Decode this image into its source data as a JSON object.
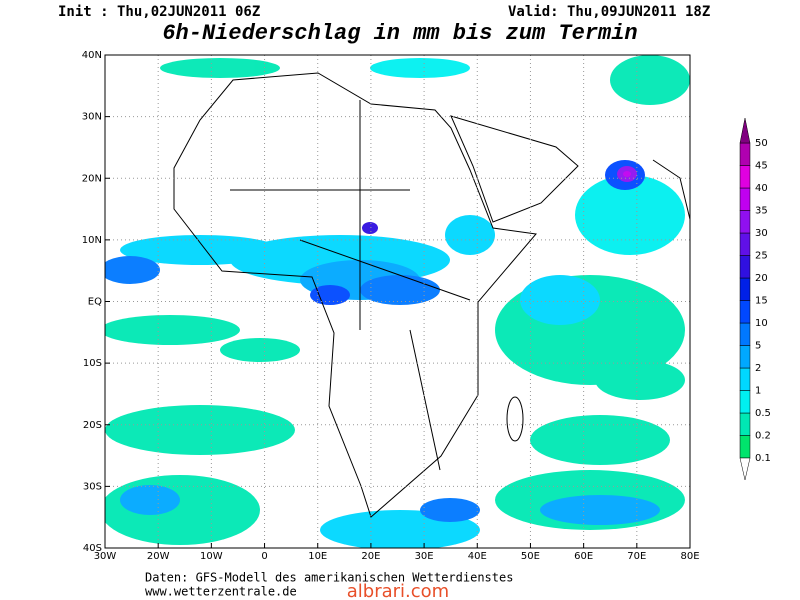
{
  "header": {
    "init": "Init : Thu,02JUN2011 06Z",
    "valid": "Valid: Thu,09JUN2011 18Z",
    "title": "6h-Niederschlag in mm bis zum Termin"
  },
  "map": {
    "lat_labels": [
      "40N",
      "30N",
      "20N",
      "10N",
      "EQ",
      "10S",
      "20S",
      "30S",
      "40S"
    ],
    "lon_labels": [
      "30W",
      "20W",
      "10W",
      "0",
      "10E",
      "20E",
      "30E",
      "40E",
      "50E",
      "60E",
      "70E",
      "80E"
    ]
  },
  "colorbar": {
    "levels": [
      0.1,
      0.2,
      0.5,
      1,
      2,
      5,
      10,
      15,
      20,
      25,
      30,
      35,
      40,
      45,
      50
    ],
    "colors": [
      "#00e46c",
      "#00e8b4",
      "#00f0f0",
      "#00d8ff",
      "#00a8ff",
      "#0078ff",
      "#0048ff",
      "#0020e8",
      "#3010e0",
      "#6010e8",
      "#9010f0",
      "#c000f0",
      "#e000e0",
      "#b000b0",
      "#800080"
    ]
  },
  "footer": {
    "line1": "Daten: GFS-Modell des amerikanischen Wetterdienstes",
    "line2": "www.wetterzentrale.de",
    "watermark": "albrari.com"
  }
}
